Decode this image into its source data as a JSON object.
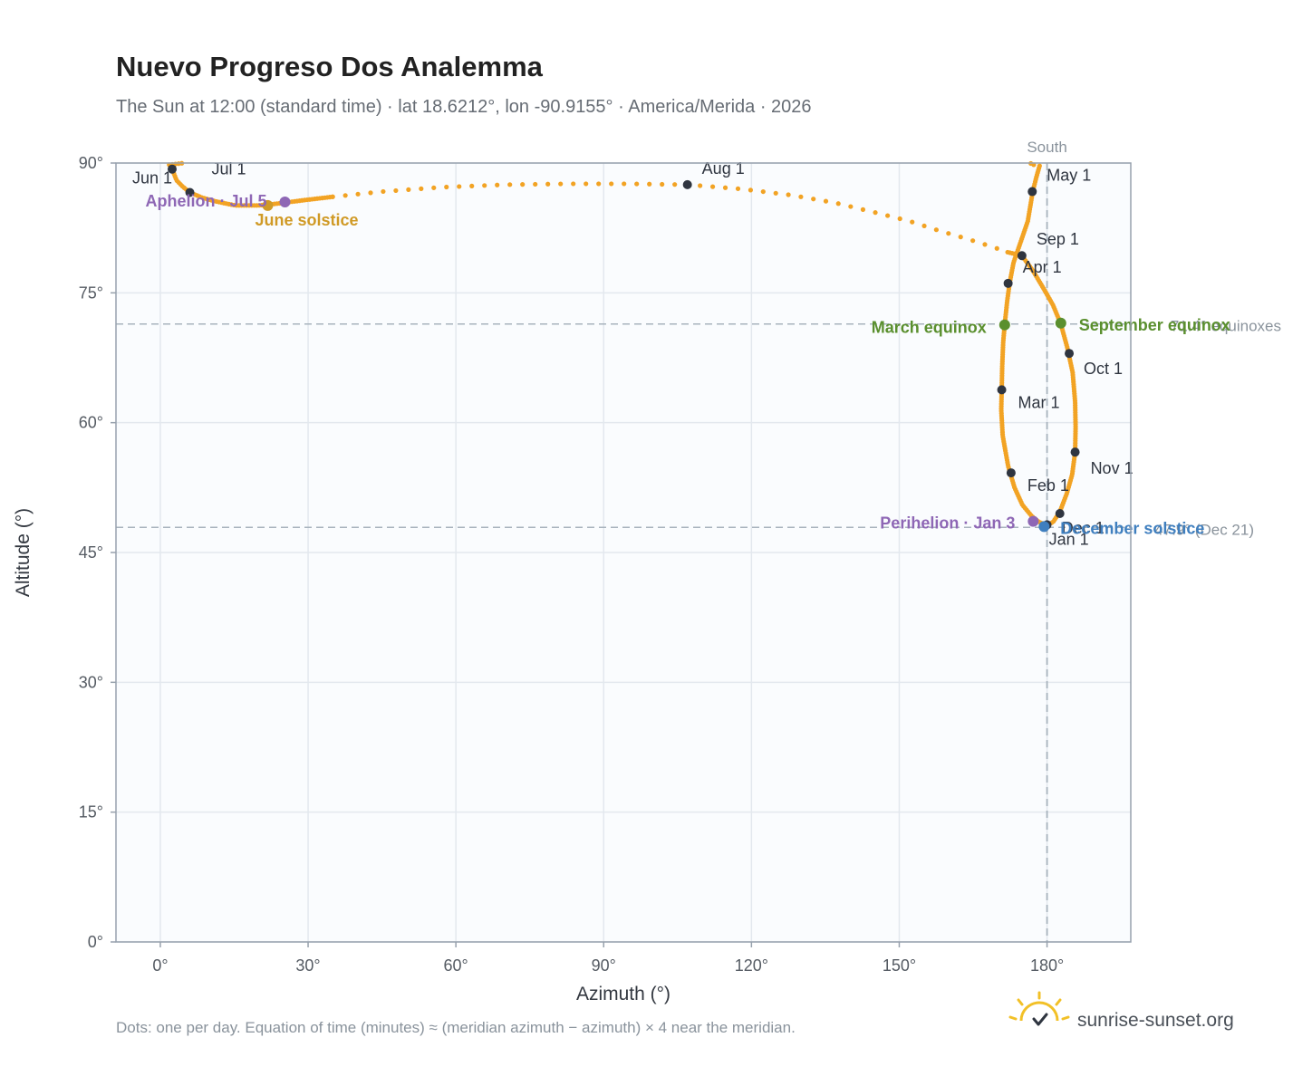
{
  "chart_data": {
    "type": "scatter",
    "title": "Nuevo Progreso Dos Analemma",
    "subtitle": "The Sun at 12:00 (standard time) · lat 18.6212°, lon -90.9155° · America/Merida · 2026",
    "xlabel": "Azimuth (°)",
    "ylabel": "Altitude (°)",
    "xlim": [
      -9,
      197
    ],
    "ylim": [
      0,
      90
    ],
    "x_ticks": [
      {
        "value": 0,
        "label": "0°"
      },
      {
        "value": 30,
        "label": "30°"
      },
      {
        "value": 60,
        "label": "60°"
      },
      {
        "value": 90,
        "label": "90°"
      },
      {
        "value": 120,
        "label": "120°"
      },
      {
        "value": 150,
        "label": "150°"
      },
      {
        "value": 180,
        "label": "180°"
      }
    ],
    "y_ticks": [
      {
        "value": 0,
        "label": "0°"
      },
      {
        "value": 15,
        "label": "15°"
      },
      {
        "value": 30,
        "label": "30°"
      },
      {
        "value": 45,
        "label": "45°"
      },
      {
        "value": 60,
        "label": "60°"
      },
      {
        "value": 75,
        "label": "75°"
      },
      {
        "value": 90,
        "label": "90°"
      }
    ],
    "grid": true,
    "analemma_path": [
      [
        180.0,
        48.2
      ],
      [
        178.4,
        48.5
      ],
      [
        176.9,
        49.2
      ],
      [
        175.0,
        50.5
      ],
      [
        173.4,
        52.5
      ],
      [
        172.1,
        55.0
      ],
      [
        171.0,
        58.5
      ],
      [
        170.7,
        61.5
      ],
      [
        170.8,
        63.8
      ],
      [
        170.9,
        66.5
      ],
      [
        171.1,
        69.3
      ],
      [
        171.4,
        71.3
      ],
      [
        171.9,
        74.0
      ],
      [
        172.4,
        76.1
      ],
      [
        173.2,
        78.5
      ],
      [
        174.6,
        80.8
      ],
      [
        176.1,
        83.3
      ],
      [
        177.1,
        86.7
      ],
      [
        177.8,
        88.3
      ],
      [
        178.5,
        89.7
      ]
    ],
    "high_arc_path": [
      [
        2.4,
        89.3
      ],
      [
        3.3,
        88.0
      ],
      [
        4.5,
        87.3
      ],
      [
        6.0,
        86.6
      ],
      [
        8.5,
        86.0
      ],
      [
        11.0,
        85.6
      ],
      [
        13.5,
        85.3
      ],
      [
        15.3,
        85.1
      ],
      [
        17.5,
        85.1
      ],
      [
        19.8,
        85.1
      ],
      [
        22.0,
        85.2
      ],
      [
        25.0,
        85.4
      ],
      [
        29.0,
        85.7
      ],
      [
        35.0,
        86.1
      ],
      [
        45.0,
        86.7
      ],
      [
        57.0,
        87.2
      ],
      [
        70.0,
        87.5
      ],
      [
        83.0,
        87.6
      ],
      [
        95.0,
        87.6
      ],
      [
        107.0,
        87.5
      ],
      [
        118.0,
        87.0
      ],
      [
        128.0,
        86.3
      ],
      [
        137.0,
        85.4
      ],
      [
        145.0,
        84.3
      ],
      [
        152.0,
        83.3
      ],
      [
        158.0,
        82.2
      ],
      [
        164.0,
        81.2
      ],
      [
        169.0,
        80.3
      ],
      [
        172.0,
        79.7
      ],
      [
        174.9,
        79.3
      ],
      [
        177.2,
        77.5
      ],
      [
        179.4,
        75.4
      ],
      [
        181.2,
        73.6
      ],
      [
        182.8,
        71.4
      ],
      [
        184.1,
        68.7
      ],
      [
        185.2,
        65.8
      ],
      [
        185.7,
        62.4
      ],
      [
        185.8,
        59.5
      ],
      [
        185.7,
        56.6
      ],
      [
        185.1,
        54.0
      ],
      [
        184.0,
        51.8
      ],
      [
        182.6,
        49.7
      ],
      [
        181.2,
        48.5
      ],
      [
        180.0,
        48.2
      ]
    ],
    "near_zenith_segments": [
      [
        [
          177.3,
          89.8
        ],
        [
          176.5,
          90.0
        ]
      ],
      [
        [
          1.8,
          89.8
        ],
        [
          4.8,
          90.0
        ]
      ]
    ],
    "month_markers": [
      {
        "label": "Jan 1",
        "x": 180.0,
        "y": 48.2,
        "dx": 2,
        "dy": 22
      },
      {
        "label": "Feb 1",
        "x": 172.7,
        "y": 54.2,
        "dx": 18,
        "dy": 20
      },
      {
        "label": "Mar 1",
        "x": 170.8,
        "y": 63.8,
        "dx": 18,
        "dy": 20
      },
      {
        "label": "Apr 1",
        "x": 172.1,
        "y": 76.1,
        "dx": 16,
        "dy": -12
      },
      {
        "label": "May 1",
        "x": 177.0,
        "y": 86.7,
        "dx": 16,
        "dy": -12
      },
      {
        "label": "Jun 1",
        "x": 2.4,
        "y": 89.3,
        "dx": -44,
        "dy": 16
      },
      {
        "label": "Jul 1",
        "x": 6.0,
        "y": 86.6,
        "dx": 24,
        "dy": -20
      },
      {
        "label": "Aug 1",
        "x": 107.0,
        "y": 87.5,
        "dx": 16,
        "dy": -12
      },
      {
        "label": "Sep 1",
        "x": 174.9,
        "y": 79.3,
        "dx": 16,
        "dy": -12
      },
      {
        "label": "Oct 1",
        "x": 184.5,
        "y": 68.0,
        "dx": 16,
        "dy": 23
      },
      {
        "label": "Nov 1",
        "x": 185.7,
        "y": 56.6,
        "dx": 17,
        "dy": 24
      },
      {
        "label": "Dec 1",
        "x": 182.6,
        "y": 49.5,
        "dx": 2,
        "dy": 22
      }
    ],
    "events": [
      {
        "label": "March equinox",
        "x": 171.4,
        "y": 71.3,
        "color": "#5a8f2e",
        "anchor": "end",
        "dx": -20,
        "dy": 9
      },
      {
        "label": "September equinox",
        "x": 182.8,
        "y": 71.5,
        "color": "#5a8f2e",
        "anchor": "start",
        "dx": 20,
        "dy": 8
      },
      {
        "label": "June solstice",
        "x": 21.8,
        "y": 85.1,
        "color": "#d09a26",
        "anchor": "start",
        "dx": -14,
        "dy": 22
      },
      {
        "label": "December solstice",
        "x": 179.4,
        "y": 48.0,
        "color": "#3f7fbf",
        "anchor": "start",
        "dx": 18,
        "dy": 8
      },
      {
        "label": "Aphelion · Jul 5",
        "x": 25.3,
        "y": 85.5,
        "color": "#8e67b5",
        "anchor": "end",
        "dx": -20,
        "dy": 5
      },
      {
        "label": "Perihelion · Jan 3",
        "x": 177.2,
        "y": 48.6,
        "color": "#8e67b5",
        "anchor": "end",
        "dx": -20,
        "dy": 8
      }
    ],
    "reference_lines": {
      "meridian": {
        "x": 180,
        "label": "South"
      },
      "equinox_altitude": {
        "y": 71.4,
        "label": "71.4° equinoxes"
      },
      "december_altitude": {
        "y": 47.9,
        "label": "47.9° (Dec 21)"
      }
    },
    "colors": {
      "analemma": "#f2a324",
      "month_marker": "#2f3540",
      "plot_background": "#fafcfe",
      "grid": "#e3e8ee",
      "frame": "#97a1ad",
      "reference": "#a8b3bd"
    }
  },
  "footnote": "Dots: one per day. Equation of time (minutes) ≈ (meridian azimuth − azimuth) × 4 near the meridian.",
  "brand": {
    "text": "sunrise-sunset.org",
    "logo_icon": "sun-check-icon",
    "logo_color": "#f2c027"
  }
}
